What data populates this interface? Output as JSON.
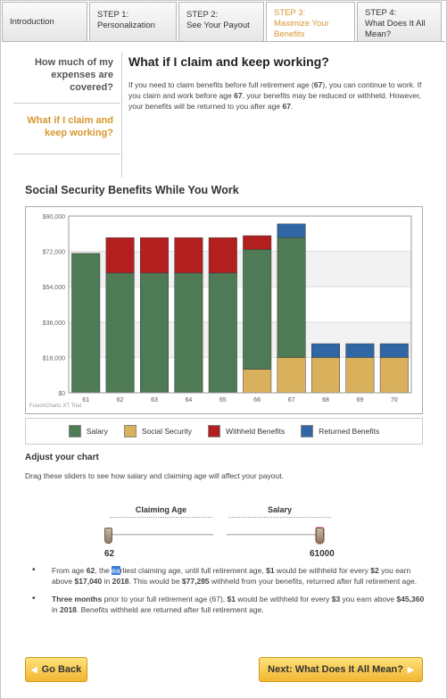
{
  "tabs": [
    {
      "label": "Introduction"
    },
    {
      "label": "STEP 1:\nPersonalization"
    },
    {
      "label": "STEP 2:\nSee Your Payout"
    },
    {
      "label": "STEP 3:\nMaximize Your\nBenefits",
      "active": true
    },
    {
      "label": "STEP 4:\nWhat Does It All\nMean?"
    }
  ],
  "sidebar": {
    "items": [
      {
        "label": "How much of my expenses are covered?"
      },
      {
        "label": "What if I claim and keep working?",
        "active": true
      }
    ]
  },
  "main": {
    "title": "What if I claim and keep working?",
    "intro": {
      "p1": "If you need to claim benefits before full retirement age (",
      "b1": "67",
      "p2": "), you can continue to work. If you claim and work before age ",
      "b2": "67",
      "p3": ", your benefits may be reduced or withheld. However, your benefits will be returned to you after age ",
      "b3": "67",
      "p4": "."
    }
  },
  "chart_data": {
    "type": "bar",
    "stacked": true,
    "title": "Social Security Benefits While You Work",
    "categories": [
      "61",
      "62",
      "63",
      "64",
      "65",
      "66",
      "67",
      "68",
      "69",
      "70"
    ],
    "y_ticks": [
      "$0",
      "$18,000",
      "$36,000",
      "$54,000",
      "$72,000",
      "$90,000"
    ],
    "ylim": [
      0,
      90000
    ],
    "series": [
      {
        "name": "Salary",
        "color": "#4e7a55",
        "values": [
          71000,
          61000,
          61000,
          61000,
          61000,
          61000,
          61000,
          0,
          0,
          0
        ]
      },
      {
        "name": "Social Security",
        "color": "#d9b15c",
        "values": [
          0,
          0,
          0,
          0,
          0,
          12000,
          18000,
          18000,
          18000,
          18000
        ]
      },
      {
        "name": "Withheld Benefits",
        "color": "#b31f1f",
        "values": [
          0,
          18000,
          18000,
          18000,
          18000,
          7000,
          0,
          0,
          0,
          0
        ]
      },
      {
        "name": "Returned Benefits",
        "color": "#2f66a3",
        "values": [
          0,
          0,
          0,
          0,
          0,
          0,
          7000,
          7000,
          7000,
          7000
        ]
      }
    ],
    "grid": true,
    "watermark": "FusionCharts XT Trial",
    "legend_position": "bottom"
  },
  "adjust": {
    "title": "Adjust your chart",
    "instructions": "Drag these sliders to see how salary and claiming age will affect your payout."
  },
  "sliders": {
    "claiming_age": {
      "label": "Claiming Age",
      "value": "62",
      "level": 0
    },
    "salary": {
      "label": "Salary",
      "value": "61000",
      "level": 1
    }
  },
  "bullets": {
    "b1": {
      "t1": "From age ",
      "age": "62",
      "t2": ", ",
      "the": "the",
      "space": " ",
      "sel": "ea",
      "rest": "rliest claiming age, until full retirement age, ",
      "amt1": "$1",
      "t3": " would be withheld for every ",
      "amt2": "$2",
      "t4": " you earn above ",
      "lim": "$17,040",
      "t5": " in ",
      "yr": "2018",
      "t6": ". This would be ",
      "total": "$77,285",
      "t7": " withheld from your benefits, returned after full retirement age."
    },
    "b2": {
      "lead": "Three months",
      "t1": " prior to your full retirement age (67), ",
      "amt1": "$1",
      "t2": " would be withheld for every ",
      "amt2": "$3",
      "t3": " you earn above ",
      "lim": "$45,360",
      "t4": " in ",
      "yr": "2018",
      "t5": ". Benefits withheld are returned after full retirement age."
    }
  },
  "buttons": {
    "back": "Go Back",
    "next": "Next: What Does It All Mean?",
    "back_arrow": "◀",
    "next_arrow": "▶"
  }
}
